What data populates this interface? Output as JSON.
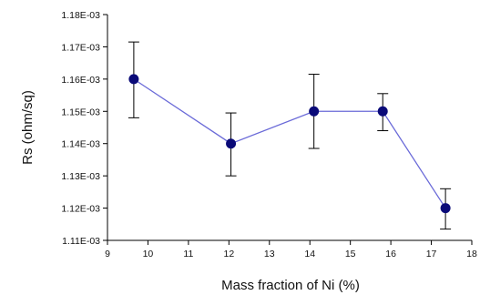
{
  "chart_data": {
    "type": "line",
    "xlabel": "Mass fraction of Ni (%)",
    "ylabel": "Rs (ohm/sq)",
    "xlim": [
      9,
      18
    ],
    "ylim": [
      0.00111,
      0.00118
    ],
    "x_ticks": [
      "9",
      "10",
      "11",
      "12",
      "13",
      "14",
      "15",
      "16",
      "17",
      "18"
    ],
    "y_ticks": [
      "1.11E-03",
      "1.12E-03",
      "1.13E-03",
      "1.14E-03",
      "1.15E-03",
      "1.16E-03",
      "1.17E-03",
      "1.18E-03"
    ],
    "grid": false,
    "series": [
      {
        "color": "#6a6ad8",
        "marker_color": "#0a0a78",
        "points": [
          {
            "x": 9.65,
            "y": 0.00116,
            "err_low": 0.001148,
            "err_high": 0.0011715
          },
          {
            "x": 12.05,
            "y": 0.00114,
            "err_low": 0.00113,
            "err_high": 0.0011495
          },
          {
            "x": 14.1,
            "y": 0.00115,
            "err_low": 0.0011385,
            "err_high": 0.0011615
          },
          {
            "x": 15.8,
            "y": 0.00115,
            "err_low": 0.001144,
            "err_high": 0.0011555
          },
          {
            "x": 17.35,
            "y": 0.00112,
            "err_low": 0.0011135,
            "err_high": 0.001126
          }
        ]
      }
    ]
  }
}
